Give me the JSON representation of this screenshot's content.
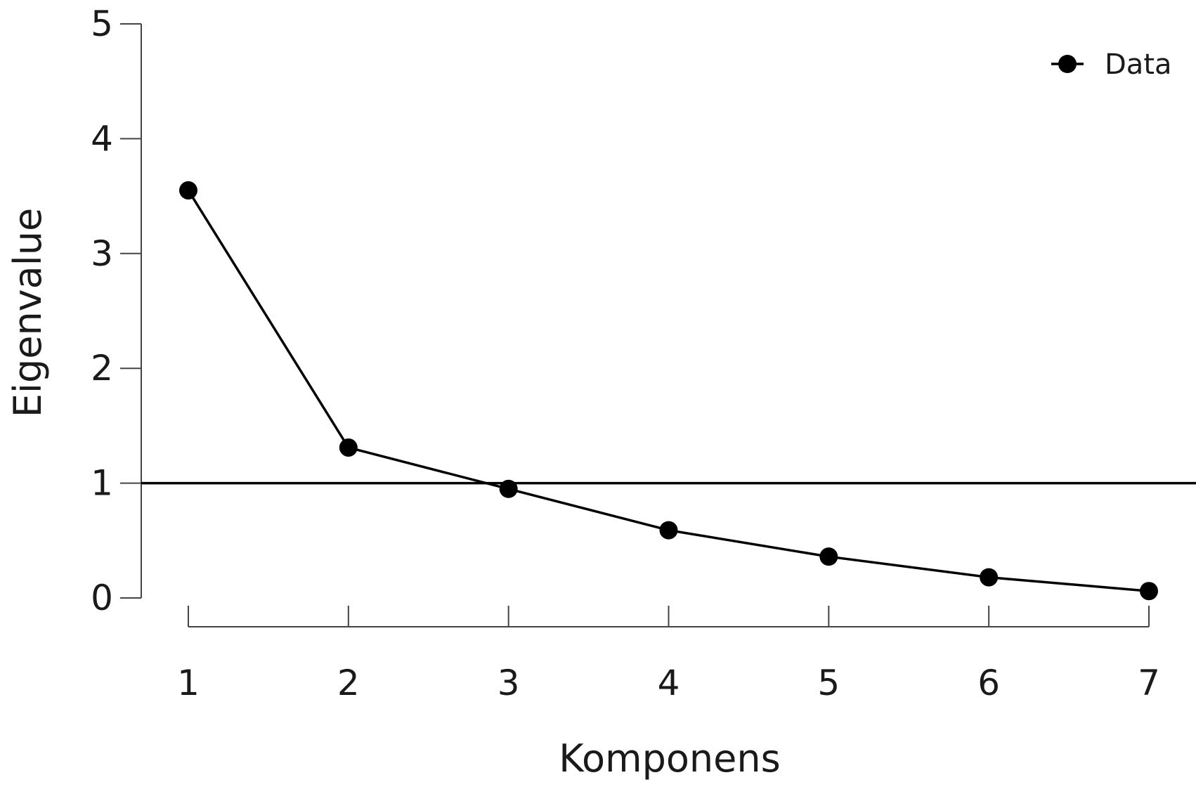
{
  "chart_data": {
    "type": "line",
    "xlabel": "Komponens",
    "ylabel": "Eigenvalue",
    "x": [
      1,
      2,
      3,
      4,
      5,
      6,
      7
    ],
    "x_ticks": [
      "1",
      "2",
      "3",
      "4",
      "5",
      "6",
      "7"
    ],
    "y_ticks": [
      "0",
      "1",
      "2",
      "3",
      "4",
      "5"
    ],
    "xlim": [
      1,
      7
    ],
    "ylim": [
      0,
      5
    ],
    "series": [
      {
        "name": "Data",
        "values": [
          3.55,
          1.31,
          0.95,
          0.59,
          0.36,
          0.18,
          0.06
        ],
        "color": "#000000",
        "marker": "circle"
      }
    ],
    "reference_lines": [
      {
        "axis": "y",
        "value": 1
      }
    ],
    "legend": {
      "position": "top-right",
      "entries": [
        "Data"
      ]
    },
    "grid": false
  }
}
